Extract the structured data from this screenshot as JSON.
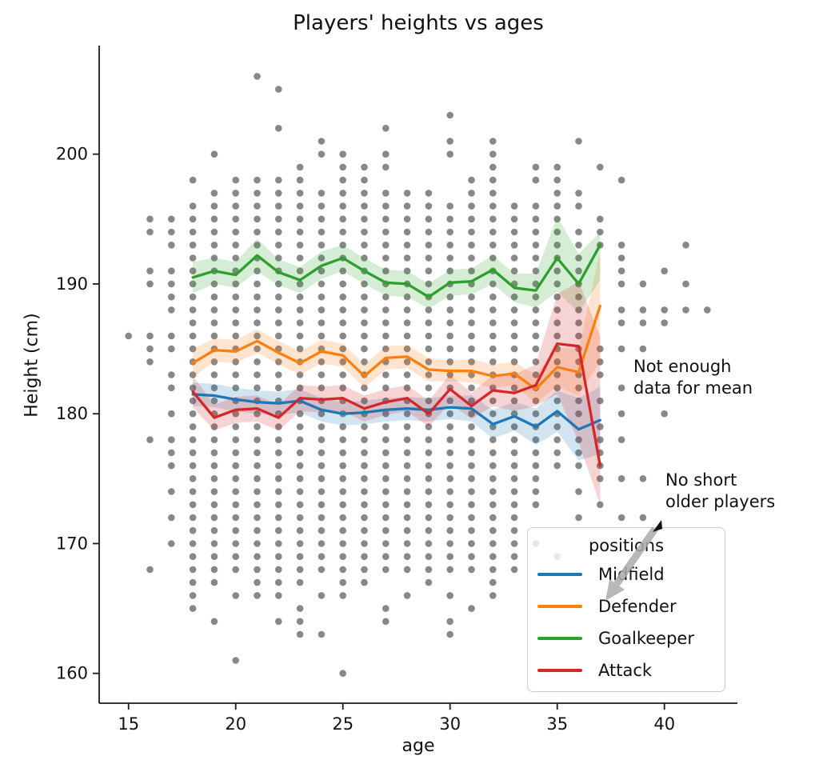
{
  "title": "Players' heights vs ages",
  "axes": {
    "xlabel": "age",
    "ylabel": "Height (cm)",
    "x_ticks": [
      15,
      20,
      25,
      30,
      35,
      40
    ],
    "y_ticks": [
      160,
      170,
      180,
      190,
      200
    ],
    "x_range": [
      13.6,
      43.3
    ],
    "y_range": [
      157.5,
      208.6
    ],
    "grid": false
  },
  "legend": {
    "title": "positions",
    "position": "lower right",
    "items": [
      {
        "label": "Midfield",
        "color": "#1f77b4"
      },
      {
        "label": "Defender",
        "color": "#ff7f0e"
      },
      {
        "label": "Goalkeeper",
        "color": "#2ca02c"
      },
      {
        "label": "Attack",
        "color": "#d62728"
      }
    ]
  },
  "annotations": [
    {
      "line1": "Not enough",
      "line2": "data for mean"
    },
    {
      "line1": "No short",
      "line2": "older players"
    }
  ],
  "colors": {
    "scatter": "#7b7b7b",
    "axis": "#1a1a1a",
    "arrow": "#ababab"
  },
  "chart_data": {
    "type": "line+scatter",
    "xlabel": "age",
    "ylabel": "Height (cm)",
    "ages": [
      18,
      19,
      20,
      21,
      22,
      23,
      24,
      25,
      26,
      27,
      28,
      29,
      30,
      31,
      32,
      33,
      34,
      35,
      36,
      37
    ],
    "series": [
      {
        "name": "Midfield",
        "color": "#1f77b4",
        "mean": [
          181.5,
          181.4,
          181.1,
          180.9,
          180.8,
          181.0,
          180.3,
          180.0,
          180.1,
          180.3,
          180.4,
          180.3,
          180.5,
          180.4,
          179.2,
          179.8,
          179.0,
          180.2,
          178.8,
          179.5
        ],
        "lo": [
          180.6,
          180.5,
          180.2,
          180.0,
          179.9,
          180.1,
          179.4,
          179.1,
          179.2,
          179.4,
          179.5,
          179.4,
          179.6,
          179.4,
          178.1,
          178.7,
          177.6,
          178.6,
          176.4,
          176.9
        ],
        "hi": [
          182.4,
          182.3,
          182.0,
          181.8,
          181.7,
          181.9,
          181.2,
          180.9,
          181.0,
          181.2,
          181.3,
          181.2,
          181.4,
          181.4,
          180.3,
          180.9,
          180.4,
          181.8,
          181.2,
          182.1
        ]
      },
      {
        "name": "Defender",
        "color": "#ff7f0e",
        "mean": [
          183.9,
          184.9,
          184.8,
          185.6,
          184.7,
          183.9,
          184.8,
          184.5,
          182.9,
          184.3,
          184.4,
          183.4,
          183.3,
          183.3,
          182.9,
          183.1,
          181.9,
          183.6,
          183.2,
          188.3
        ],
        "lo": [
          182.8,
          184.0,
          183.9,
          184.7,
          183.8,
          183.0,
          183.9,
          183.6,
          182.0,
          183.4,
          183.5,
          182.5,
          182.5,
          182.4,
          182.0,
          182.2,
          180.8,
          182.1,
          181.4,
          184.0
        ],
        "hi": [
          185.0,
          185.8,
          185.7,
          186.5,
          185.6,
          184.8,
          185.7,
          185.4,
          183.8,
          185.2,
          185.3,
          184.3,
          184.1,
          184.2,
          183.8,
          184.0,
          183.0,
          185.1,
          185.0,
          192.5
        ]
      },
      {
        "name": "Goalkeeper",
        "color": "#2ca02c",
        "mean": [
          190.5,
          191.0,
          190.7,
          192.2,
          190.9,
          190.3,
          191.4,
          192.0,
          191.0,
          190.1,
          190.0,
          189.0,
          190.1,
          190.2,
          191.1,
          189.7,
          189.5,
          192.0,
          190.0,
          193.0
        ],
        "lo": [
          189.3,
          190.0,
          189.7,
          191.0,
          189.9,
          189.3,
          190.4,
          191.0,
          190.0,
          189.1,
          189.0,
          188.1,
          189.1,
          189.2,
          190.0,
          188.6,
          188.2,
          189.4,
          187.8,
          190.3
        ],
        "hi": [
          191.7,
          192.0,
          191.7,
          193.5,
          191.9,
          191.3,
          192.5,
          193.0,
          192.0,
          191.1,
          191.0,
          190.0,
          191.1,
          191.2,
          192.2,
          190.8,
          190.8,
          195.2,
          192.3,
          194.0
        ]
      },
      {
        "name": "Attack",
        "color": "#d62728",
        "mean": [
          181.7,
          179.7,
          180.3,
          180.4,
          179.7,
          181.2,
          181.1,
          181.2,
          180.4,
          180.9,
          181.2,
          180.0,
          181.9,
          180.6,
          181.8,
          181.6,
          182.2,
          185.4,
          185.2,
          176.0
        ],
        "lo": [
          180.5,
          178.7,
          179.3,
          179.4,
          178.7,
          180.2,
          180.1,
          180.2,
          179.4,
          179.9,
          180.2,
          179.0,
          180.8,
          179.6,
          180.6,
          180.2,
          180.6,
          181.5,
          177.8,
          173.0
        ],
        "hi": [
          182.9,
          180.7,
          181.3,
          181.4,
          180.7,
          182.2,
          182.1,
          182.2,
          181.4,
          181.9,
          182.2,
          181.0,
          183.0,
          181.6,
          183.0,
          183.0,
          183.8,
          189.2,
          190.2,
          186.0
        ]
      }
    ],
    "scatter": {
      "note": "unique (age, height-cm) player combinations; heights given as inclusive integer runs per age",
      "columns": [
        {
          "age": 15,
          "runs": [
            [
              186,
              186
            ]
          ]
        },
        {
          "age": 16,
          "runs": [
            [
              168,
              168
            ],
            [
              178,
              178
            ],
            [
              184,
              186
            ],
            [
              190,
              191
            ],
            [
              194,
              195
            ]
          ]
        },
        {
          "age": 17,
          "runs": [
            [
              170,
              170
            ],
            [
              172,
              172
            ],
            [
              174,
              174
            ],
            [
              176,
              178
            ],
            [
              180,
              180
            ],
            [
              182,
              183
            ],
            [
              185,
              186
            ],
            [
              188,
              191
            ],
            [
              193,
              195
            ]
          ]
        },
        {
          "age": 18,
          "runs": [
            [
              165,
              196
            ],
            [
              198,
              198
            ]
          ]
        },
        {
          "age": 19,
          "runs": [
            [
              164,
              164
            ],
            [
              167,
              197
            ],
            [
              200,
              200
            ]
          ]
        },
        {
          "age": 20,
          "runs": [
            [
              161,
              161
            ],
            [
              166,
              166
            ],
            [
              168,
              198
            ]
          ]
        },
        {
          "age": 21,
          "runs": [
            [
              166,
              198
            ],
            [
              206,
              206
            ]
          ]
        },
        {
          "age": 22,
          "runs": [
            [
              164,
              164
            ],
            [
              166,
              198
            ],
            [
              202,
              202
            ],
            [
              205,
              205
            ]
          ]
        },
        {
          "age": 23,
          "runs": [
            [
              163,
              165
            ],
            [
              167,
              199
            ]
          ]
        },
        {
          "age": 24,
          "runs": [
            [
              163,
              163
            ],
            [
              166,
              166
            ],
            [
              168,
              197
            ],
            [
              200,
              201
            ]
          ]
        },
        {
          "age": 25,
          "runs": [
            [
              160,
              160
            ],
            [
              166,
              200
            ]
          ]
        },
        {
          "age": 26,
          "runs": [
            [
              167,
              199
            ]
          ]
        },
        {
          "age": 27,
          "runs": [
            [
              164,
              165
            ],
            [
              168,
              197
            ],
            [
              199,
              200
            ],
            [
              202,
              202
            ]
          ]
        },
        {
          "age": 28,
          "runs": [
            [
              166,
              166
            ],
            [
              168,
              197
            ]
          ]
        },
        {
          "age": 29,
          "runs": [
            [
              167,
              197
            ]
          ]
        },
        {
          "age": 30,
          "runs": [
            [
              163,
              164
            ],
            [
              166,
              166
            ],
            [
              168,
              196
            ],
            [
              200,
              201
            ],
            [
              203,
              203
            ]
          ]
        },
        {
          "age": 31,
          "runs": [
            [
              165,
              165
            ],
            [
              168,
              198
            ]
          ]
        },
        {
          "age": 32,
          "runs": [
            [
              166,
              201
            ]
          ]
        },
        {
          "age": 33,
          "runs": [
            [
              168,
              196
            ]
          ]
        },
        {
          "age": 34,
          "runs": [
            [
              170,
              170
            ],
            [
              173,
              196
            ],
            [
              198,
              199
            ]
          ]
        },
        {
          "age": 35,
          "runs": [
            [
              169,
              169
            ],
            [
              176,
              199
            ]
          ]
        },
        {
          "age": 36,
          "runs": [
            [
              172,
              172
            ],
            [
              174,
              174
            ],
            [
              176,
              178
            ],
            [
              180,
              194
            ],
            [
              196,
              197
            ],
            [
              201,
              201
            ]
          ]
        },
        {
          "age": 37,
          "runs": [
            [
              173,
              173
            ],
            [
              175,
              179
            ],
            [
              181,
              181
            ],
            [
              183,
              185
            ],
            [
              193,
              195
            ],
            [
              199,
              199
            ]
          ]
        },
        {
          "age": 38,
          "runs": [
            [
              172,
              172
            ],
            [
              175,
              175
            ],
            [
              178,
              178
            ],
            [
              180,
              180
            ],
            [
              182,
              182
            ],
            [
              185,
              185
            ],
            [
              187,
              188
            ],
            [
              190,
              193
            ],
            [
              198,
              198
            ]
          ]
        },
        {
          "age": 39,
          "runs": [
            [
              172,
              172
            ],
            [
              175,
              175
            ],
            [
              185,
              185
            ],
            [
              187,
              188
            ],
            [
              190,
              190
            ]
          ]
        },
        {
          "age": 40,
          "runs": [
            [
              180,
              180
            ],
            [
              187,
              188
            ],
            [
              191,
              191
            ]
          ]
        },
        {
          "age": 41,
          "runs": [
            [
              188,
              188
            ],
            [
              190,
              190
            ],
            [
              193,
              193
            ]
          ]
        },
        {
          "age": 42,
          "runs": [
            [
              188,
              188
            ]
          ]
        }
      ]
    }
  }
}
